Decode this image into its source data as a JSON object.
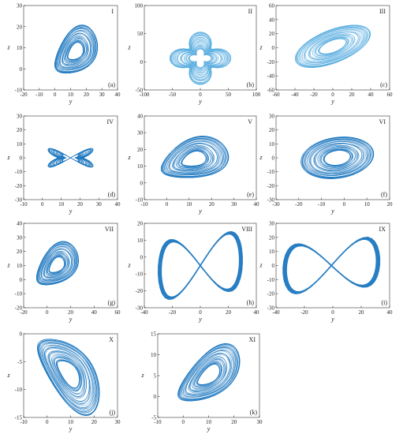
{
  "style": {
    "line_color": "#1c77bf",
    "light_color": "#5aaee0",
    "axis_color": "#333333"
  },
  "chart_data": [
    {
      "type": "line",
      "roman": "I",
      "letter": "(a)",
      "xlabel": "y",
      "ylabel": "z",
      "xlim": [
        -20,
        40
      ],
      "ylim": [
        -10,
        30
      ],
      "xticks": [
        "-20",
        "-10",
        "0",
        "10",
        "20",
        "30",
        "40"
      ],
      "yticks": [
        "-10",
        "0",
        "10",
        "20",
        "30"
      ],
      "shape": "wing",
      "params": {
        "cx": 13,
        "cy": 8,
        "a": 15,
        "b": 13,
        "rot": 32
      }
    },
    {
      "type": "line",
      "roman": "II",
      "letter": "(b)",
      "xlabel": "y",
      "ylabel": "z",
      "xlim": [
        -100,
        100
      ],
      "ylim": [
        -60,
        100
      ],
      "xticks": [
        "-100",
        "-50",
        "0",
        "50",
        "100"
      ],
      "yticks": [
        "-50",
        "0",
        "50",
        "100"
      ],
      "shape": "clover",
      "params": {
        "cx": 0,
        "cy": 0,
        "a": 55,
        "b": 50
      }
    },
    {
      "type": "line",
      "roman": "III",
      "letter": "(c)",
      "xlabel": "y",
      "ylabel": "z",
      "xlim": [
        -60,
        60
      ],
      "ylim": [
        -60,
        60
      ],
      "xticks": [
        "-60",
        "-40",
        "-20",
        "0",
        "20",
        "40",
        "60"
      ],
      "yticks": [
        "-60",
        "-40",
        "-20",
        "0",
        "20",
        "40",
        "60"
      ],
      "shape": "ellipse",
      "params": {
        "cx": 0,
        "cy": 2,
        "a": 45,
        "b": 22,
        "rot": 32
      }
    },
    {
      "type": "line",
      "roman": "IV",
      "letter": "(d)",
      "xlabel": "y",
      "ylabel": "z",
      "xlim": [
        -10,
        40
      ],
      "ylim": [
        -30,
        30
      ],
      "xticks": [
        "-10",
        "0",
        "10",
        "20",
        "30",
        "40"
      ],
      "yticks": [
        "-30",
        "-20",
        "-10",
        "0",
        "10",
        "20",
        "30"
      ],
      "shape": "butterfly",
      "params": {
        "cx": 15,
        "cy": 0,
        "a": 21,
        "b": 15
      }
    },
    {
      "type": "line",
      "roman": "V",
      "letter": "(e)",
      "xlabel": "y",
      "ylabel": "z",
      "xlim": [
        -10,
        40
      ],
      "ylim": [
        -10,
        40
      ],
      "xticks": [
        "-10",
        "0",
        "10",
        "20",
        "30",
        "40"
      ],
      "yticks": [
        "-10",
        "0",
        "10",
        "20",
        "30",
        "40"
      ],
      "shape": "wing",
      "params": {
        "cx": 12,
        "cy": 14,
        "a": 16,
        "b": 15,
        "rot": 28
      }
    },
    {
      "type": "line",
      "roman": "VI",
      "letter": "(f)",
      "xlabel": "y",
      "ylabel": "z",
      "xlim": [
        -30,
        20
      ],
      "ylim": [
        -30,
        30
      ],
      "xticks": [
        "-30",
        "-20",
        "-10",
        "0",
        "10",
        "20"
      ],
      "yticks": [
        "-30",
        "-20",
        "-10",
        "0",
        "10",
        "20",
        "30"
      ],
      "shape": "ellipse",
      "params": {
        "cx": -3,
        "cy": 0,
        "a": 17,
        "b": 14,
        "rot": 35
      }
    },
    {
      "type": "line",
      "roman": "VII",
      "letter": "(g)",
      "xlabel": "y",
      "ylabel": "z",
      "xlim": [
        -20,
        60
      ],
      "ylim": [
        -20,
        40
      ],
      "xticks": [
        "-20",
        "0",
        "20",
        "40",
        "60"
      ],
      "yticks": [
        "-20",
        "-10",
        "0",
        "10",
        "20",
        "30",
        "40"
      ],
      "shape": "wing",
      "params": {
        "cx": 8,
        "cy": 10,
        "a": 20,
        "b": 17,
        "rot": 35
      }
    },
    {
      "type": "line",
      "roman": "VIII",
      "letter": "(h)",
      "xlabel": "y",
      "ylabel": "z",
      "xlim": [
        -40,
        40
      ],
      "ylim": [
        -30,
        20
      ],
      "xticks": [
        "-40",
        "-20",
        "0",
        "20",
        "40"
      ],
      "yticks": [
        "-30",
        "-20",
        "-10",
        "0",
        "10",
        "20"
      ],
      "shape": "figure8",
      "params": {
        "cx": 0,
        "cy": -5,
        "a": 30,
        "b": 22,
        "sign": -1
      }
    },
    {
      "type": "line",
      "roman": "IX",
      "letter": "(i)",
      "xlabel": "y",
      "ylabel": "z",
      "xlim": [
        -40,
        40
      ],
      "ylim": [
        -30,
        30
      ],
      "xticks": [
        "-40",
        "-20",
        "0",
        "20",
        "40"
      ],
      "yticks": [
        "-30",
        "-20",
        "-10",
        "0",
        "10",
        "20",
        "30"
      ],
      "shape": "figure8",
      "params": {
        "cx": -1,
        "cy": 0,
        "a": 34,
        "b": 22,
        "sign": 1
      }
    },
    {
      "type": "line",
      "roman": "X",
      "letter": "(j)",
      "xlabel": "y",
      "ylabel": "z",
      "xlim": [
        -10,
        30
      ],
      "ylim": [
        -15,
        0
      ],
      "xticks": [
        "-10",
        "0",
        "10",
        "20",
        "30"
      ],
      "yticks": [
        "-15",
        "-10",
        "-5",
        "0"
      ],
      "shape": "wing",
      "params": {
        "cx": 9,
        "cy": -7,
        "a": 14,
        "b": 7,
        "rot": -20
      }
    },
    {
      "type": "line",
      "roman": "XI",
      "letter": "(k)",
      "xlabel": "y",
      "ylabel": "z",
      "xlim": [
        -10,
        30
      ],
      "ylim": [
        -5,
        15
      ],
      "xticks": [
        "-10",
        "0",
        "10",
        "20",
        "30"
      ],
      "yticks": [
        "-5",
        "0",
        "5",
        "10",
        "15"
      ],
      "shape": "wing",
      "params": {
        "cx": 10,
        "cy": 5,
        "a": 13,
        "b": 7,
        "rot": 22
      }
    }
  ]
}
